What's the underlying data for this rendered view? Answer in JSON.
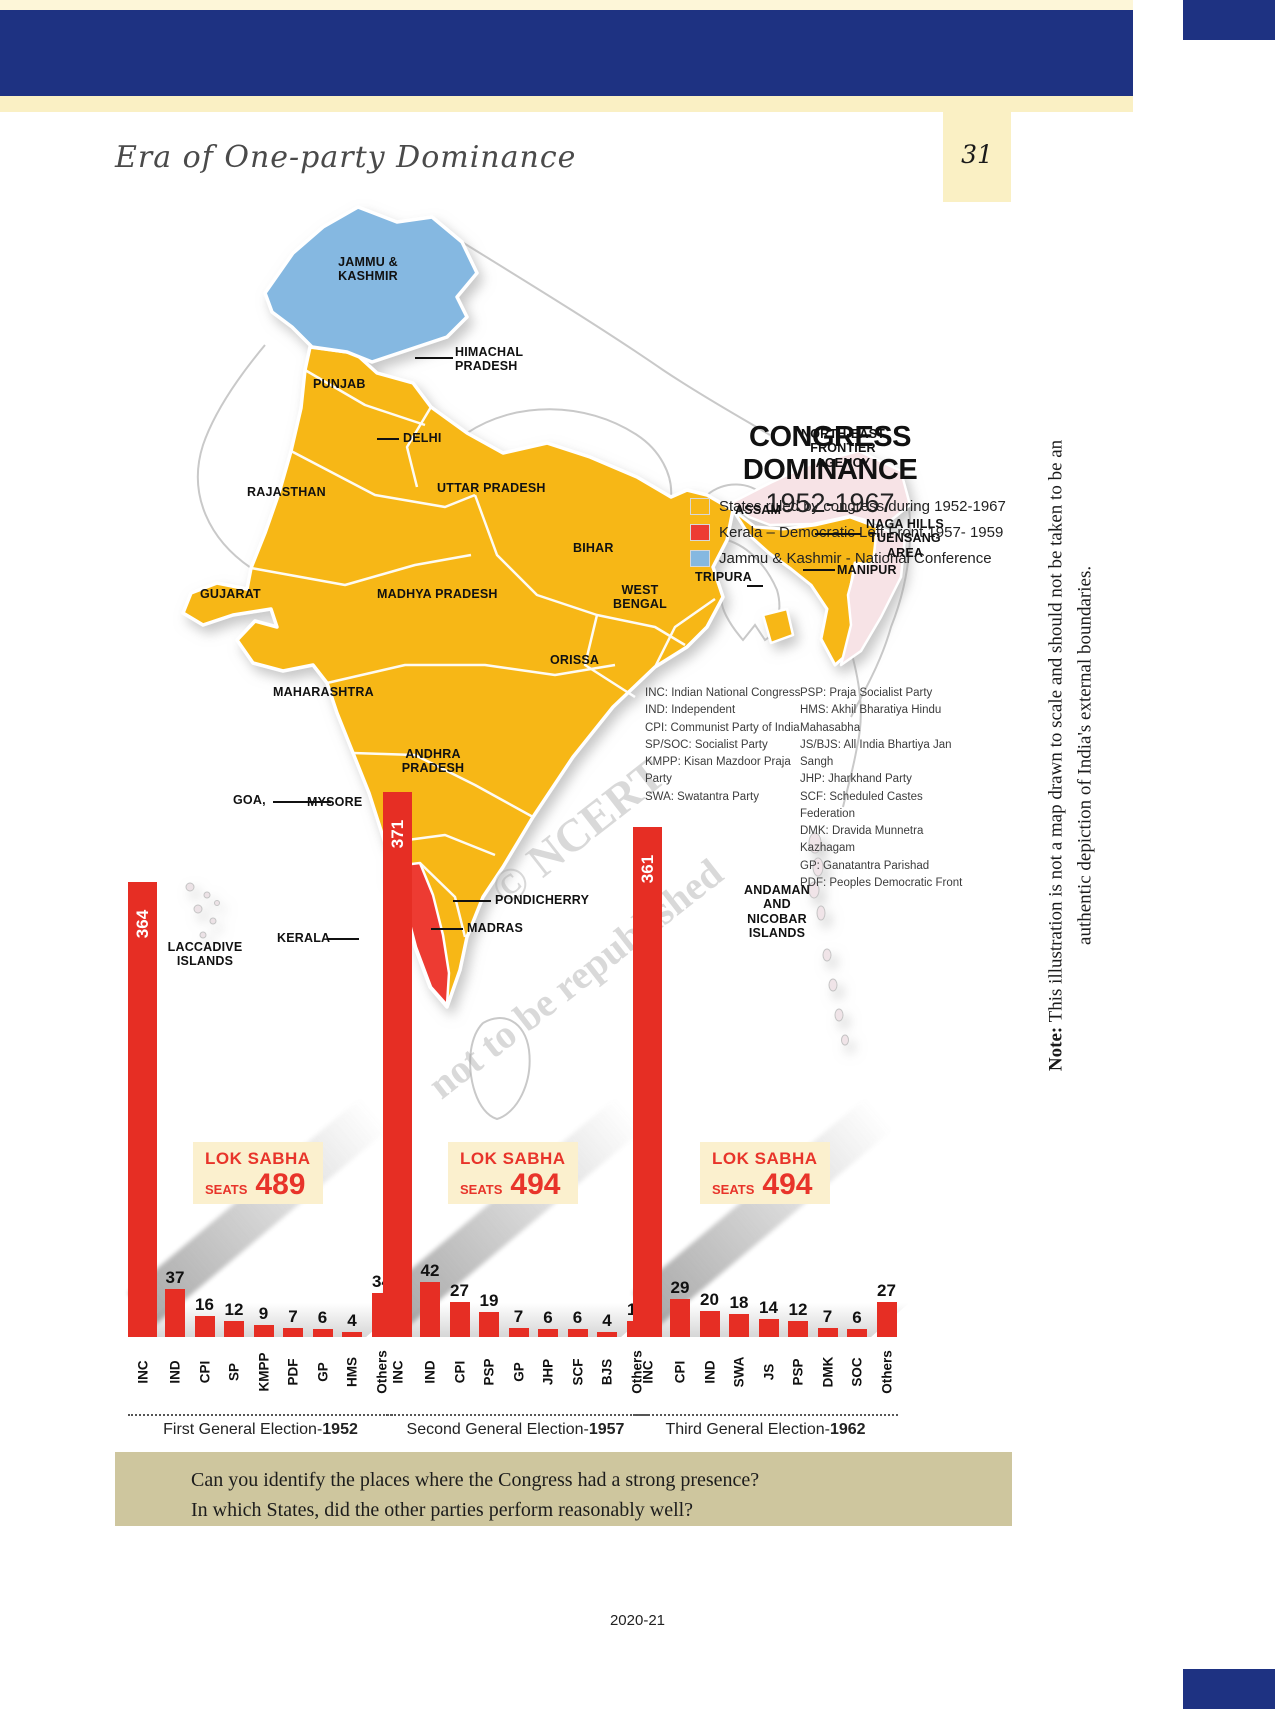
{
  "page": {
    "header_title": "Era of One-party Dominance",
    "page_number": "31",
    "footer": "2020-21"
  },
  "map": {
    "title": "CONGRESS DOMINANCE",
    "subtitle": "1952-1967",
    "legend": [
      {
        "label": "States ruled by congress during 1952-1967",
        "color": "#F7B718"
      },
      {
        "label": "Kerala – Democratic Left Front 1957- 1959",
        "color": "#ED3B33"
      },
      {
        "label": "Jammu & Kashmir - National Conference",
        "color": "#85B8E1"
      }
    ],
    "labels": [
      "JAMMU &\nKASHMIR",
      "HIMACHAL\nPRADESH",
      "PUNJAB",
      "DELHI",
      "RAJASTHAN",
      "UTTAR PRADESH",
      "ASSAM",
      "NORTH-EAST\nFRONTIER\nAGENCY",
      "NAGA HILLS\nTUENSANG\nAREA",
      "MANIPUR",
      "TRIPURA",
      "BIHAR",
      "WEST\nBENGAL",
      "GUJARAT",
      "MADHYA PRADESH",
      "ORISSA",
      "MAHARASHTRA",
      "ANDHRA\nPRADESH",
      "GOA,",
      "MYSORE",
      "PONDICHERRY",
      "MADRAS",
      "KERALA",
      "LACCADIVE\nISLANDS",
      "ANDAMAN\nAND\nNICOBAR\nISLANDS"
    ],
    "abbreviations_left": [
      "INC: Indian National Congress",
      "IND: Independent",
      "CPI: Communist Party of India",
      "SP/SOC: Socialist Party",
      "KMPP: Kisan Mazdoor Praja Party",
      "SWA: Swatantra Party"
    ],
    "abbreviations_right": [
      "PSP: Praja Socialist Party",
      "HMS: Akhil Bharatiya Hindu Mahasabha",
      "JS/BJS: All India Bhartiya Jan Sangh",
      "JHP: Jharkhand Party",
      "SCF: Scheduled Castes Federation",
      "DMK: Dravida Munnetra Kazhagam",
      "GP: Ganatantra Parishad",
      "PDF: Peoples Democratic Front"
    ],
    "note_bold": "Note:",
    "note_rest": " This illustration is not a map drawn to scale and should not be taken to be an authentic depiction of India's external boundaries.",
    "watermark": [
      "© NCERT",
      "not to be republished"
    ],
    "colors": {
      "congress_yellow": "#F7B718",
      "kerala_red": "#ED3B33",
      "jk_blue": "#85B8E1",
      "nefa_pink": "#F7E3E6"
    }
  },
  "question_box": {
    "line1": "Can you identify the places where the Congress had a strong presence?",
    "line2": "In which States, did the other parties perform reasonably well?"
  },
  "chart_data": [
    {
      "type": "bar",
      "title": "First General Election-1952",
      "caption_prefix": "First General Election-",
      "caption_year": "1952",
      "seats_label": "LOK SABHA",
      "seats_word": "SEATS",
      "seats_value": "489",
      "categories": [
        "INC",
        "IND",
        "CPI",
        "SP",
        "KMPP",
        "PDF",
        "GP",
        "HMS",
        "Others"
      ],
      "values": [
        364,
        37,
        16,
        12,
        9,
        7,
        6,
        4,
        34
      ],
      "bar_color": "#e62e24"
    },
    {
      "type": "bar",
      "title": "Second General Election-1957",
      "caption_prefix": "Second General Election-",
      "caption_year": "1957",
      "seats_label": "LOK SABHA",
      "seats_word": "SEATS",
      "seats_value": "494",
      "categories": [
        "INC",
        "IND",
        "CPI",
        "PSP",
        "GP",
        "JHP",
        "SCF",
        "BJS",
        "Others"
      ],
      "values": [
        371,
        42,
        27,
        19,
        7,
        6,
        6,
        4,
        12
      ],
      "bar_color": "#e62e24"
    },
    {
      "type": "bar",
      "title": "Third General Election-1962",
      "caption_prefix": "Third General Election-",
      "caption_year": "1962",
      "seats_label": "LOK SABHA",
      "seats_word": "SEATS",
      "seats_value": "494",
      "categories": [
        "INC",
        "CPI",
        "IND",
        "SWA",
        "JS",
        "PSP",
        "DMK",
        "SOC",
        "Others"
      ],
      "values": [
        361,
        29,
        20,
        18,
        14,
        12,
        7,
        6,
        27
      ],
      "bar_color": "#e62e24"
    }
  ]
}
